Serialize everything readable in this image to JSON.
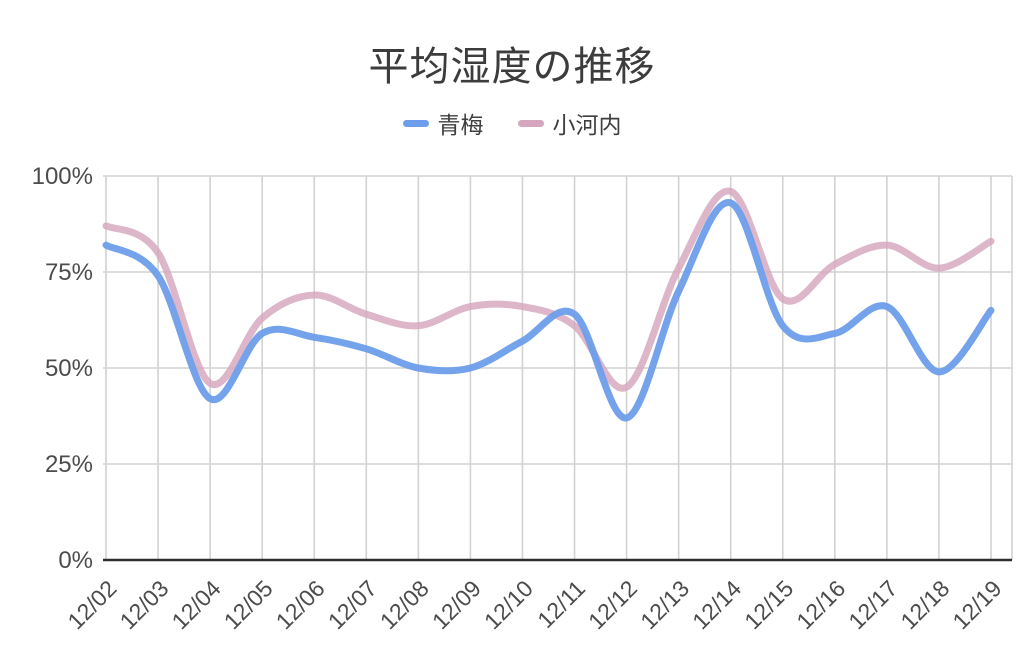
{
  "title": "平均湿度の推移",
  "legend": {
    "items": [
      {
        "label": "青梅",
        "color": "#6d9eeb"
      },
      {
        "label": "小河内",
        "color": "#d5a6bd"
      }
    ]
  },
  "chart_data": {
    "type": "line",
    "title": "平均湿度の推移",
    "x": [
      "12/02",
      "12/03",
      "12/04",
      "12/05",
      "12/06",
      "12/07",
      "12/08",
      "12/09",
      "12/10",
      "12/11",
      "12/12",
      "12/13",
      "12/14",
      "12/15",
      "12/16",
      "12/17",
      "12/18",
      "12/19"
    ],
    "series": [
      {
        "name": "青梅",
        "color": "#6d9eeb",
        "values": [
          82,
          74,
          42,
          59,
          58,
          55,
          50,
          50,
          57,
          64,
          37,
          70,
          93,
          61,
          59,
          66,
          49,
          65
        ]
      },
      {
        "name": "小河内",
        "color": "#d5a6bd",
        "values": [
          87,
          80,
          46,
          63,
          69,
          64,
          61,
          66,
          66,
          61,
          45,
          76,
          96,
          68,
          77,
          82,
          76,
          83
        ]
      }
    ],
    "ylabel": "",
    "xlabel": "",
    "y_tick_labels": [
      "0%",
      "25%",
      "50%",
      "75%",
      "100%"
    ],
    "ylim": [
      0,
      100
    ],
    "grid": true,
    "smooth": true,
    "legend_position": "top",
    "unit": "%"
  },
  "colors": {
    "grid": "#d2d2d2",
    "axis": "#2e2e2e",
    "tick_text": "#4c4c4c",
    "title_text": "#3c3c3c"
  }
}
